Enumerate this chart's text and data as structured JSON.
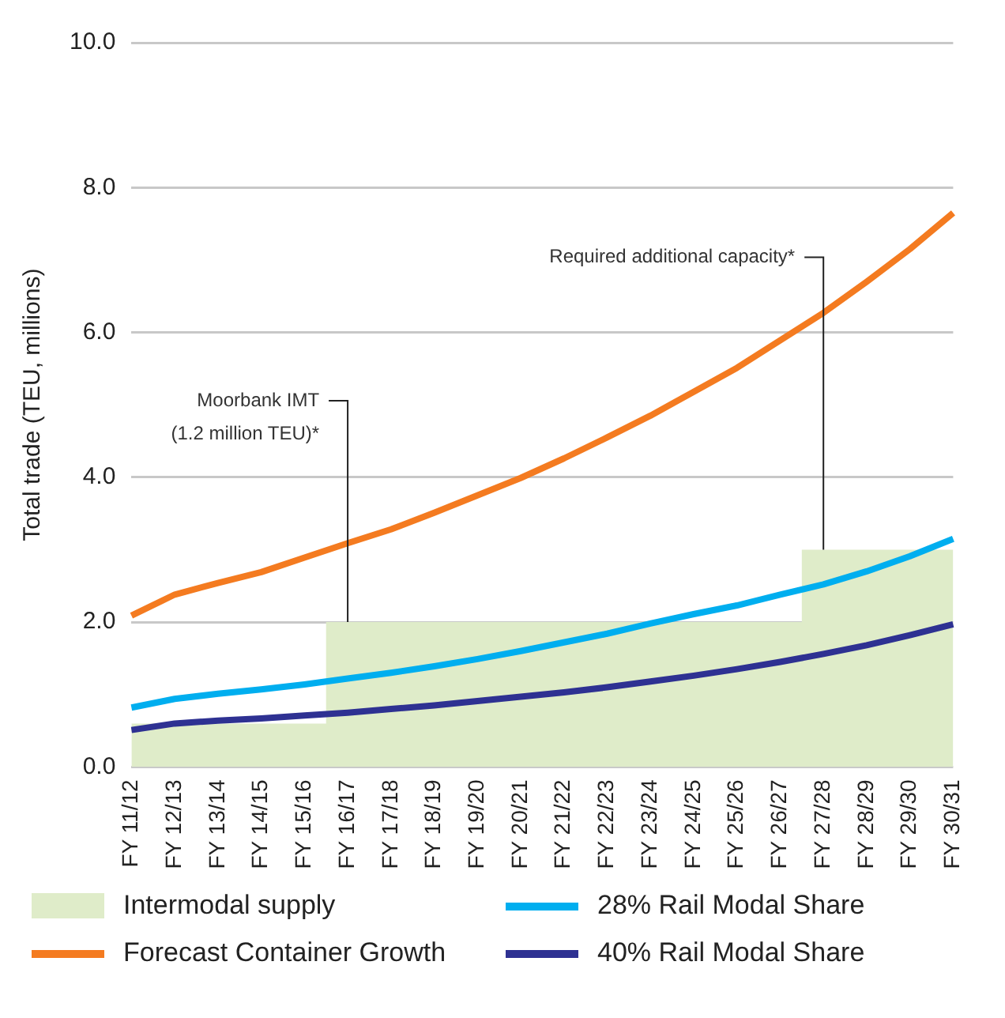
{
  "chart_data": {
    "type": "line",
    "ylabel": "Total trade (TEU, millions)",
    "categories": [
      "FY 11/12",
      "FY 12/13",
      "FY 13/14",
      "FY 14/15",
      "FY 15/16",
      "FY 16/17",
      "FY 17/18",
      "FY 18/19",
      "FY 19/20",
      "FY 20/21",
      "FY 21/22",
      "FY 22/23",
      "FY 23/24",
      "FY 24/25",
      "FY 25/26",
      "FY 26/27",
      "FY 27/28",
      "FY 28/29",
      "FY 29/30",
      "FY 30/31"
    ],
    "series": [
      {
        "name": "Intermodal supply",
        "type": "area",
        "color": "#dfecc9",
        "values": [
          0.6,
          0.6,
          0.6,
          0.6,
          0.6,
          2.0,
          2.0,
          2.0,
          2.0,
          2.0,
          2.0,
          2.0,
          2.0,
          2.0,
          2.0,
          2.0,
          3.0,
          3.0,
          3.0,
          3.0
        ]
      },
      {
        "name": "Forecast Container Growth",
        "color": "#f47b20",
        "values": [
          2.09,
          2.38,
          2.54,
          2.69,
          2.89,
          3.09,
          3.28,
          3.51,
          3.75,
          3.99,
          4.26,
          4.55,
          4.85,
          5.18,
          5.51,
          5.89,
          6.27,
          6.7,
          7.15,
          7.65
        ]
      },
      {
        "name": "28% Rail Modal Share",
        "color": "#00aeef",
        "values": [
          0.82,
          0.94,
          1.01,
          1.07,
          1.14,
          1.22,
          1.3,
          1.39,
          1.49,
          1.6,
          1.72,
          1.84,
          1.98,
          2.11,
          2.23,
          2.38,
          2.52,
          2.7,
          2.91,
          3.15
        ]
      },
      {
        "name": "40% Rail Modal Share",
        "color": "#2e3192",
        "values": [
          0.51,
          0.6,
          0.64,
          0.67,
          0.71,
          0.75,
          0.8,
          0.85,
          0.91,
          0.97,
          1.03,
          1.1,
          1.18,
          1.26,
          1.35,
          1.45,
          1.56,
          1.68,
          1.82,
          1.97
        ]
      }
    ],
    "ylim": [
      0,
      10
    ],
    "yticks": [
      {
        "value": 0,
        "label": "0.0"
      },
      {
        "value": 2,
        "label": "2.0"
      },
      {
        "value": 4,
        "label": "4.0"
      },
      {
        "value": 6,
        "label": "6.0"
      },
      {
        "value": 8,
        "label": "8.0"
      },
      {
        "value": 10,
        "label": "10.0"
      }
    ],
    "grid": "y",
    "legend": "bottom",
    "marker": "none",
    "annotations": [
      {
        "text": "Moorbank IMT\n(1.2 million TEU)*",
        "x": "FY 16/17",
        "y": 2.0
      },
      {
        "text": "Required additional capacity*",
        "x": "FY 27/28",
        "y": 3.0
      }
    ]
  }
}
